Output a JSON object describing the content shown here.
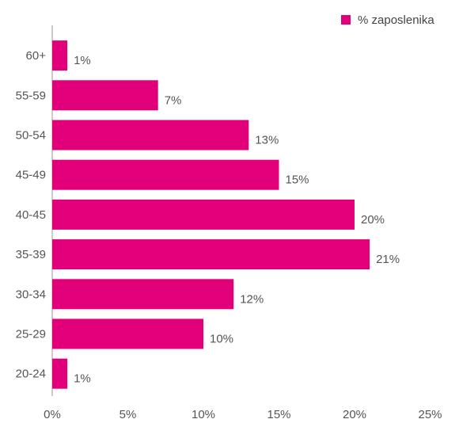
{
  "chart_data": {
    "type": "bar",
    "orientation": "horizontal",
    "categories": [
      "60+",
      "55-59",
      "50-54",
      "45-49",
      "40-45",
      "35-39",
      "30-34",
      "25-29",
      "20-24"
    ],
    "series": [
      {
        "name": "% zaposlenika",
        "values": [
          1,
          7,
          13,
          15,
          20,
          21,
          12,
          10,
          1
        ],
        "value_labels": [
          "1%",
          "7%",
          "13%",
          "15%",
          "20%",
          "21%",
          "12%",
          "10%",
          "1%"
        ]
      }
    ],
    "x_ticks": [
      0,
      5,
      10,
      15,
      20,
      25
    ],
    "x_tick_labels": [
      "0%",
      "5%",
      "10%",
      "15%",
      "20%",
      "25%"
    ],
    "xlim": [
      0,
      25
    ],
    "grid": false,
    "legend_position": "top-right",
    "colors": {
      "bar": "#e2007a",
      "axis": "#999999",
      "text": "#555555"
    }
  }
}
